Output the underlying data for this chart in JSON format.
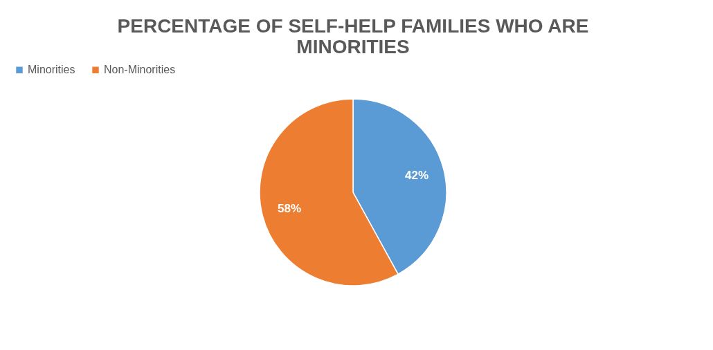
{
  "chart_data": {
    "type": "pie",
    "title": "PERCENTAGE OF SELF-HELP FAMILIES WHO ARE MINORITIES",
    "categories": [
      "Minorities",
      "Non-Minorities"
    ],
    "values": [
      42,
      58
    ],
    "colors": [
      "#5b9bd5",
      "#ed7d31"
    ],
    "value_labels": [
      "42%",
      "58%"
    ],
    "legend": "top"
  }
}
